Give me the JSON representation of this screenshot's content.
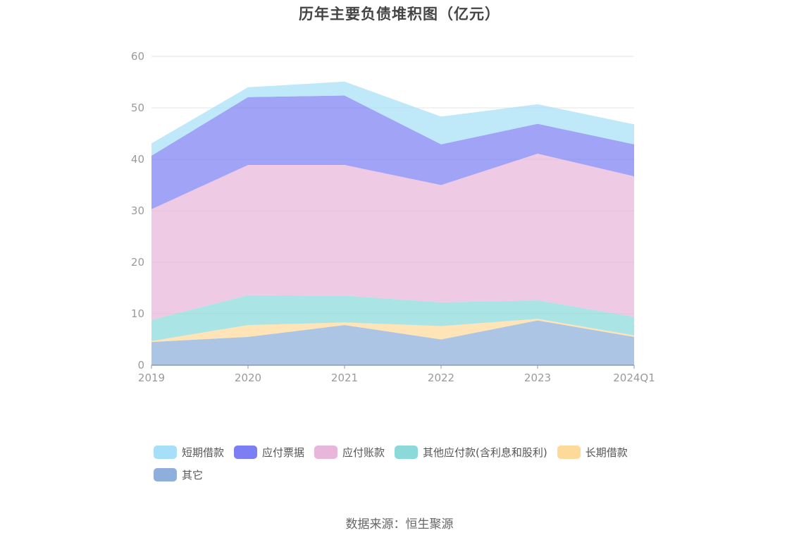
{
  "title": "历年主要负债堆积图（亿元）",
  "source": "数据来源：恒生聚源",
  "chart_data": {
    "type": "area",
    "stacked": true,
    "title": "历年主要负债堆积图（亿元）",
    "categories": [
      "2019",
      "2020",
      "2021",
      "2022",
      "2023",
      "2024Q1"
    ],
    "ylim": [
      0,
      60
    ],
    "yticks": [
      0,
      10,
      20,
      30,
      40,
      50,
      60
    ],
    "ytick_labels": [
      "0",
      "10",
      "20",
      "30",
      "40",
      "50",
      "60"
    ],
    "grid": true,
    "legend_position": "bottom",
    "series": [
      {
        "name": "其它",
        "color": "#8eaedb",
        "values": [
          4.5,
          5.5,
          7.8,
          5.0,
          8.7,
          5.5
        ]
      },
      {
        "name": "长期借款",
        "color": "#fdd99a",
        "values": [
          0.2,
          2.3,
          0.5,
          2.6,
          0.3,
          0.3
        ]
      },
      {
        "name": "其他应付款(含利息和股利)",
        "color": "#8bd9d9",
        "values": [
          4.1,
          5.8,
          5.2,
          4.6,
          3.6,
          3.6
        ]
      },
      {
        "name": "应付账款",
        "color": "#e8b6da",
        "values": [
          21.5,
          25.3,
          25.4,
          22.8,
          28.5,
          27.3
        ]
      },
      {
        "name": "应付票据",
        "color": "#7b7ff3",
        "values": [
          10.4,
          13.2,
          13.5,
          7.9,
          5.8,
          6.2
        ]
      },
      {
        "name": "短期借款",
        "color": "#a6dff7",
        "values": [
          2.4,
          1.9,
          2.7,
          5.4,
          3.8,
          3.9
        ]
      }
    ],
    "legend_order": [
      "短期借款",
      "应付票据",
      "应付账款",
      "其他应付款(含利息和股利)",
      "长期借款",
      "其它"
    ]
  }
}
